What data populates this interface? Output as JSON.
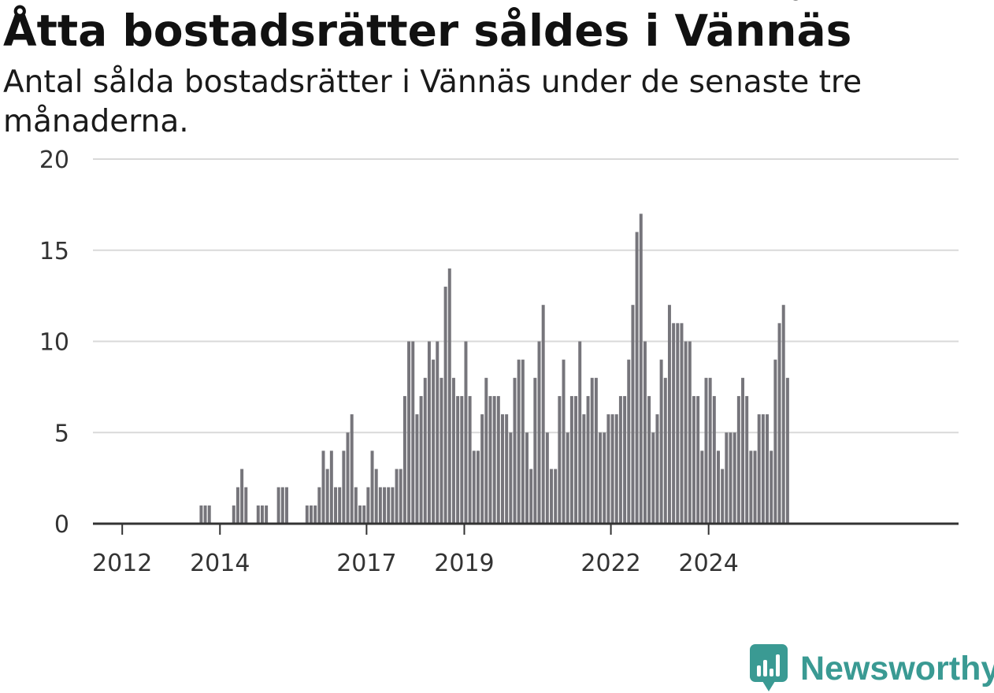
{
  "chart_data": {
    "type": "bar",
    "title": "Åtta bostadsrätter såldes i Vännäs",
    "subtitle": "Antal sålda bostadsrätter i Vännäs under de senaste tre månaderna.",
    "xlabel": "",
    "ylabel": "",
    "ylim": [
      0,
      20
    ],
    "yticks": [
      "0",
      "5",
      "10",
      "15",
      "20"
    ],
    "xticks": [
      "2012",
      "2014",
      "2017",
      "2019",
      "2022",
      "2024"
    ],
    "grid": true,
    "legend": "none",
    "start": "2011-06",
    "values": [
      0,
      0,
      0,
      0,
      0,
      0,
      0,
      0,
      0,
      0,
      0,
      0,
      0,
      0,
      0,
      0,
      0,
      0,
      0,
      0,
      0,
      0,
      0,
      0,
      0,
      0,
      1,
      1,
      1,
      0,
      0,
      0,
      0,
      0,
      1,
      2,
      3,
      2,
      0,
      0,
      1,
      1,
      1,
      0,
      0,
      2,
      2,
      2,
      0,
      0,
      0,
      0,
      1,
      1,
      1,
      2,
      4,
      3,
      4,
      2,
      2,
      4,
      5,
      6,
      2,
      1,
      1,
      2,
      4,
      3,
      2,
      2,
      2,
      2,
      3,
      3,
      7,
      10,
      10,
      6,
      7,
      8,
      10,
      9,
      10,
      8,
      13,
      14,
      8,
      7,
      7,
      10,
      7,
      4,
      4,
      6,
      8,
      7,
      7,
      7,
      6,
      6,
      5,
      8,
      9,
      9,
      5,
      3,
      8,
      10,
      12,
      5,
      3,
      3,
      7,
      9,
      5,
      7,
      7,
      10,
      6,
      7,
      8,
      8,
      5,
      5,
      6,
      6,
      6,
      7,
      7,
      9,
      12,
      16,
      17,
      10,
      7,
      5,
      6,
      9,
      8,
      12,
      11,
      11,
      11,
      10,
      10,
      7,
      7,
      4,
      8,
      8,
      7,
      4,
      3,
      5,
      5,
      5,
      7,
      8,
      7,
      4,
      4,
      6,
      6,
      6,
      4,
      9,
      11,
      12,
      8
    ],
    "highlight": {
      "index": 172,
      "label": "8",
      "color": "#1a9e94"
    },
    "bar_color": "#76757b"
  },
  "logo": {
    "text": "Newsworthy",
    "icon": "chart-bubble-icon",
    "color": "#3a9a93"
  }
}
